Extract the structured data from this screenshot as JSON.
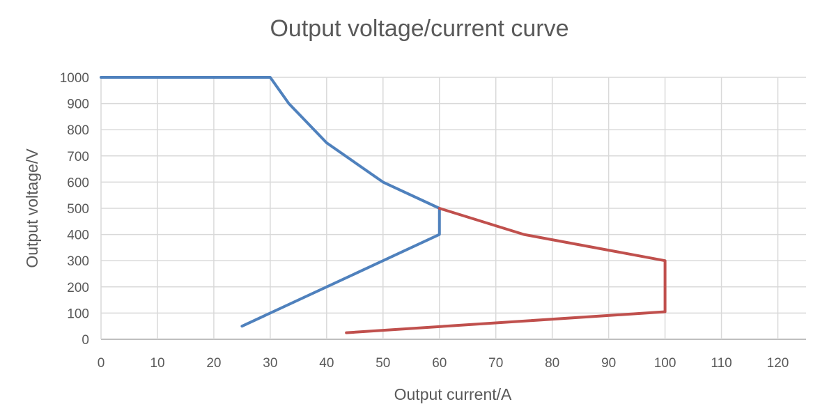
{
  "chart_data": {
    "type": "line",
    "title": "Output voltage/current curve",
    "xlabel": "Output current/A",
    "ylabel": "Output voltage/V",
    "xlim": [
      0,
      125
    ],
    "ylim": [
      0,
      1000
    ],
    "xticks": [
      0,
      10,
      20,
      30,
      40,
      50,
      60,
      70,
      80,
      90,
      100,
      110,
      120
    ],
    "yticks": [
      0,
      100,
      200,
      300,
      400,
      500,
      600,
      700,
      800,
      900,
      1000
    ],
    "grid": true,
    "series": [
      {
        "color": "#4f81bd",
        "points": [
          [
            0,
            1000
          ],
          [
            30,
            1000
          ],
          [
            33.3,
            900
          ],
          [
            40,
            750
          ],
          [
            50,
            600
          ],
          [
            60,
            500
          ],
          [
            60,
            400
          ],
          [
            25,
            50
          ]
        ]
      },
      {
        "color": "#c0504d",
        "points": [
          [
            60,
            500
          ],
          [
            75,
            400
          ],
          [
            100,
            300
          ],
          [
            100,
            105
          ],
          [
            43.5,
            25
          ]
        ]
      }
    ]
  }
}
